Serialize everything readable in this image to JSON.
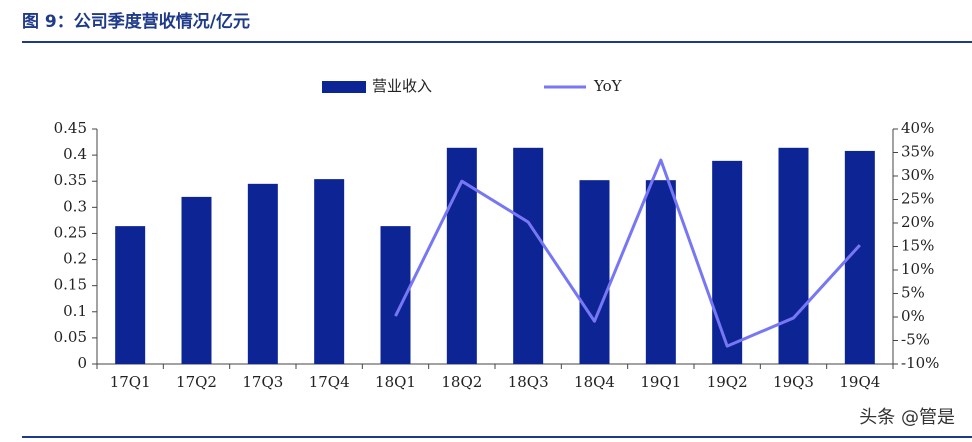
{
  "chart_data": {
    "type": "bar",
    "title": "图 9：公司季度营收情况/亿元",
    "watermark": "头条 @管是",
    "categories": [
      "17Q1",
      "17Q2",
      "17Q3",
      "17Q4",
      "18Q1",
      "18Q2",
      "18Q3",
      "18Q4",
      "19Q1",
      "19Q2",
      "19Q3",
      "19Q4"
    ],
    "series": [
      {
        "name": "营业收入",
        "type": "bar",
        "color": "#0d2494",
        "values": [
          0.264,
          0.32,
          0.345,
          0.354,
          0.264,
          0.414,
          0.414,
          0.352,
          0.352,
          0.389,
          0.414,
          0.408
        ]
      },
      {
        "name": "YoY",
        "type": "line",
        "axis": "y2",
        "color": "#7777f5",
        "values": [
          null,
          null,
          null,
          null,
          0.2,
          28.9,
          20.2,
          -0.9,
          33.4,
          -6.2,
          -0.2,
          15.3
        ]
      }
    ],
    "ylim": [
      0,
      0.45
    ],
    "yticks": [
      0,
      0.05,
      0.1,
      0.15,
      0.2,
      0.25,
      0.3,
      0.35,
      0.4,
      0.45
    ],
    "y2lim": [
      -10,
      40
    ],
    "y2ticks": [
      {
        "value": -10,
        "label": "-10%"
      },
      {
        "value": -5,
        "label": "-5%"
      },
      {
        "value": 0,
        "label": "0%"
      },
      {
        "value": 5,
        "label": "5%"
      },
      {
        "value": 10,
        "label": "10%"
      },
      {
        "value": 15,
        "label": "15%"
      },
      {
        "value": 20,
        "label": "20%"
      },
      {
        "value": 25,
        "label": "25%"
      },
      {
        "value": 30,
        "label": "30%"
      },
      {
        "value": 35,
        "label": "35%"
      },
      {
        "value": 40,
        "label": "40%"
      }
    ],
    "legend": "top"
  }
}
